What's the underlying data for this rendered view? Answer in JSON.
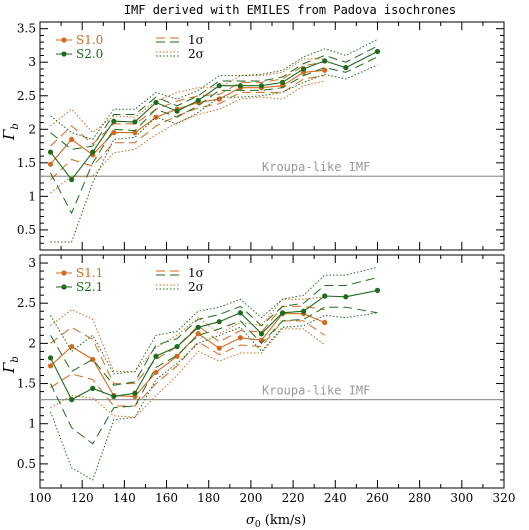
{
  "figure": {
    "title": "IMF derived with EMILES from Padova isochrones",
    "xlabel": "σ₀ (km/s)",
    "ylabel": "Γb",
    "reference_label": "Kroupa-like IMF",
    "reference_value": 1.3
  },
  "colors": {
    "orange": "#d2691e",
    "green": "#1e6b1e",
    "reference": "#999999",
    "axes": "#000000"
  },
  "chart_data": [
    {
      "type": "line",
      "panel": "top",
      "xlim": [
        100,
        320
      ],
      "ylim": [
        0.2,
        3.6
      ],
      "xticks": [
        100,
        120,
        140,
        160,
        180,
        200,
        220,
        240,
        260,
        280,
        300,
        320
      ],
      "yticks": [
        0.5,
        1,
        1.5,
        2,
        2.5,
        3,
        3.5
      ],
      "ytick_labels": [
        "0.5",
        "1",
        "1.5",
        "2",
        "2.5",
        "3",
        "3.5"
      ],
      "legend": {
        "placement": "top-left",
        "entries": [
          "S1.0",
          "S2.0"
        ],
        "sigma_entries": [
          "1σ",
          "2σ"
        ]
      },
      "series": [
        {
          "name": "S1.0",
          "color_key": "orange",
          "x": [
            105,
            115,
            125,
            135,
            145,
            155,
            165,
            175,
            185,
            195,
            205,
            215,
            225,
            235
          ],
          "y": [
            1.48,
            1.85,
            1.62,
            1.95,
            1.95,
            2.18,
            2.3,
            2.4,
            2.45,
            2.62,
            2.62,
            2.65,
            2.85,
            2.88
          ],
          "band1_lo": [
            1.25,
            1.55,
            1.45,
            1.8,
            1.8,
            2.05,
            2.2,
            2.32,
            2.38,
            2.55,
            2.55,
            2.55,
            2.75,
            2.8
          ],
          "band1_hi": [
            1.75,
            2.05,
            1.78,
            2.08,
            2.08,
            2.3,
            2.42,
            2.5,
            2.52,
            2.7,
            2.7,
            2.75,
            2.95,
            3.0
          ],
          "band2_lo": [
            1.05,
            1.3,
            1.3,
            1.65,
            1.7,
            1.92,
            2.1,
            2.22,
            2.3,
            2.45,
            2.48,
            2.45,
            2.65,
            2.72
          ],
          "band2_hi": [
            2.05,
            2.3,
            1.95,
            2.2,
            2.18,
            2.42,
            2.55,
            2.62,
            2.62,
            2.8,
            2.8,
            2.85,
            3.05,
            3.05
          ]
        },
        {
          "name": "S2.0",
          "color_key": "green",
          "x": [
            105,
            115,
            125,
            135,
            145,
            155,
            165,
            175,
            185,
            195,
            205,
            215,
            225,
            235,
            245,
            260
          ],
          "y": [
            1.66,
            1.25,
            1.66,
            2.12,
            2.11,
            2.4,
            2.27,
            2.43,
            2.65,
            2.65,
            2.65,
            2.7,
            2.9,
            3.02,
            2.92,
            3.16
          ],
          "band1_lo": [
            1.35,
            0.75,
            1.5,
            2.0,
            1.98,
            2.3,
            2.18,
            2.35,
            2.58,
            2.58,
            2.58,
            2.62,
            2.8,
            2.92,
            2.85,
            3.08
          ],
          "band1_hi": [
            1.95,
            1.7,
            1.75,
            2.22,
            2.22,
            2.48,
            2.35,
            2.5,
            2.72,
            2.72,
            2.72,
            2.78,
            2.98,
            3.1,
            3.0,
            3.24
          ],
          "band2_lo": [
            0.32,
            0.32,
            1.2,
            1.85,
            1.88,
            2.18,
            2.08,
            2.25,
            2.48,
            2.48,
            2.5,
            2.55,
            2.7,
            2.82,
            2.75,
            2.96
          ],
          "band2_hi": [
            2.2,
            1.95,
            1.85,
            2.3,
            2.3,
            2.55,
            2.45,
            2.58,
            2.8,
            2.8,
            2.82,
            2.88,
            3.08,
            3.2,
            3.1,
            3.34
          ]
        }
      ]
    },
    {
      "type": "line",
      "panel": "bottom",
      "xlim": [
        100,
        320
      ],
      "ylim": [
        0.2,
        3.1
      ],
      "xticks": [
        100,
        120,
        140,
        160,
        180,
        200,
        220,
        240,
        260,
        280,
        300,
        320
      ],
      "xtick_labels": [
        "100",
        "120",
        "140",
        "160",
        "180",
        "200",
        "220",
        "240",
        "260",
        "280",
        "300",
        "320"
      ],
      "yticks": [
        0.5,
        1,
        1.5,
        2,
        2.5,
        3
      ],
      "ytick_labels": [
        "0.5",
        "1",
        "1.5",
        "2",
        "2.5",
        "3"
      ],
      "legend": {
        "placement": "top-left",
        "entries": [
          "S1.1",
          "S2.1"
        ],
        "sigma_entries": [
          "1σ",
          "2σ"
        ]
      },
      "series": [
        {
          "name": "S1.1",
          "color_key": "orange",
          "x": [
            105,
            115,
            125,
            135,
            145,
            155,
            165,
            175,
            185,
            195,
            205,
            215,
            225,
            235
          ],
          "y": [
            1.72,
            1.96,
            1.8,
            1.35,
            1.34,
            1.64,
            1.84,
            2.12,
            1.94,
            2.07,
            2.04,
            2.37,
            2.37,
            2.26
          ],
          "band1_lo": [
            1.45,
            1.62,
            1.55,
            1.22,
            1.22,
            1.5,
            1.72,
            2.02,
            1.86,
            1.98,
            1.96,
            2.28,
            2.28,
            2.1
          ],
          "band1_hi": [
            2.0,
            2.2,
            2.05,
            1.5,
            1.5,
            1.8,
            1.96,
            2.22,
            2.02,
            2.16,
            2.14,
            2.46,
            2.46,
            2.42
          ],
          "band2_lo": [
            1.2,
            1.35,
            1.32,
            1.1,
            1.08,
            1.35,
            1.6,
            1.9,
            1.78,
            1.88,
            1.88,
            2.18,
            2.18,
            1.98
          ],
          "band2_hi": [
            2.22,
            2.42,
            2.3,
            1.65,
            1.65,
            1.95,
            2.1,
            2.32,
            2.12,
            2.26,
            2.22,
            2.55,
            2.55,
            2.58
          ]
        },
        {
          "name": "S2.1",
          "color_key": "green",
          "x": [
            105,
            115,
            125,
            135,
            145,
            155,
            165,
            175,
            185,
            195,
            205,
            215,
            225,
            235,
            245,
            260
          ],
          "y": [
            1.82,
            1.3,
            1.44,
            1.34,
            1.38,
            1.84,
            1.96,
            2.2,
            2.27,
            2.38,
            2.12,
            2.38,
            2.4,
            2.59,
            2.58,
            2.66
          ],
          "band1_lo": [
            1.5,
            0.95,
            0.75,
            1.2,
            1.22,
            1.7,
            1.85,
            2.1,
            2.18,
            2.28,
            2.0,
            2.28,
            2.3,
            2.45,
            2.45,
            2.38
          ],
          "band1_hi": [
            2.1,
            1.65,
            1.8,
            1.48,
            1.52,
            1.98,
            2.06,
            2.3,
            2.36,
            2.46,
            2.22,
            2.46,
            2.5,
            2.72,
            2.72,
            2.82
          ],
          "band2_lo": [
            1.15,
            0.45,
            0.3,
            1.05,
            1.08,
            1.55,
            1.75,
            2.0,
            2.1,
            2.2,
            1.9,
            2.2,
            2.22,
            2.35,
            2.32,
            2.38
          ],
          "band2_hi": [
            2.35,
            1.9,
            2.1,
            1.62,
            1.65,
            2.1,
            2.15,
            2.4,
            2.45,
            2.55,
            2.32,
            2.55,
            2.6,
            2.85,
            2.85,
            2.95
          ]
        }
      ]
    }
  ]
}
